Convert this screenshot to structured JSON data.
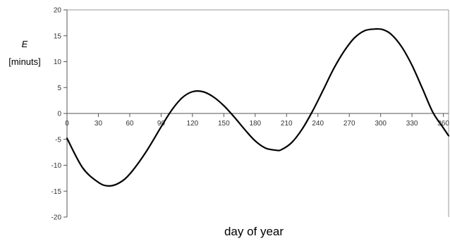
{
  "chart_data": {
    "type": "line",
    "title": "",
    "xlabel": "day of year",
    "ylabel_symbol": "E",
    "ylabel_unit": "[minuts]",
    "xlim": [
      0,
      365
    ],
    "ylim": [
      -20,
      20
    ],
    "x_ticks": [
      "0",
      "30",
      "60",
      "90",
      "120",
      "150",
      "180",
      "210",
      "240",
      "270",
      "300",
      "330",
      "360"
    ],
    "y_ticks": [
      "20",
      "15",
      "10",
      "5",
      "0",
      "-5",
      "-10",
      "-15",
      "-20"
    ],
    "grid": false,
    "legend": "none",
    "line_color": "#000000",
    "series": [
      {
        "x": [
          0,
          15,
          30,
          40,
          50,
          60,
          75,
          90,
          100,
          110,
          120,
          130,
          140,
          150,
          160,
          170,
          180,
          190,
          200,
          205,
          215,
          225,
          235,
          245,
          255,
          265,
          275,
          285,
          295,
          302,
          310,
          320,
          330,
          340,
          350,
          360,
          365
        ],
        "values": [
          -4.8,
          -10.5,
          -13.3,
          -14.0,
          -13.4,
          -11.7,
          -7.6,
          -2.6,
          0.6,
          3.0,
          4.2,
          4.2,
          3.2,
          1.5,
          -0.7,
          -3.1,
          -5.3,
          -6.7,
          -7.1,
          -7.0,
          -5.6,
          -3.0,
          0.5,
          4.5,
          8.6,
          12.0,
          14.6,
          16.0,
          16.3,
          16.2,
          15.3,
          12.9,
          9.3,
          4.8,
          0.2,
          -2.8,
          -4.3
        ]
      }
    ]
  }
}
